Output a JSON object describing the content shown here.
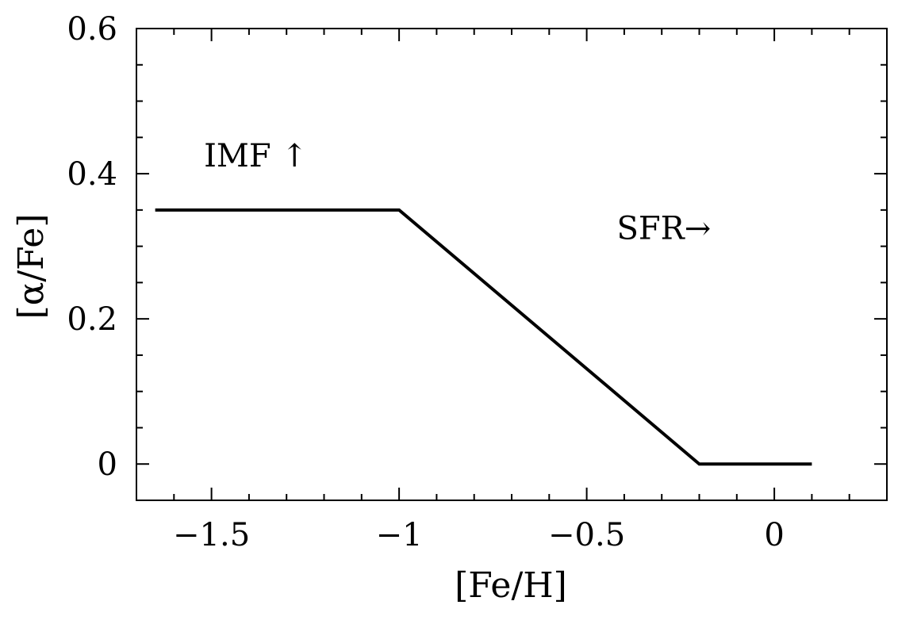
{
  "chart_data": {
    "type": "line",
    "xlabel": "[Fe/H]",
    "ylabel": "[α/Fe]",
    "xlim": [
      -1.7,
      0.3
    ],
    "ylim": [
      -0.05,
      0.6
    ],
    "x_ticks": [
      -1.5,
      -1,
      -0.5,
      0
    ],
    "x_tick_labels": [
      "−1.5",
      "−1",
      "−0.5",
      "0"
    ],
    "y_ticks": [
      0,
      0.2,
      0.4,
      0.6
    ],
    "y_tick_labels": [
      "0",
      "0.2",
      "0.4",
      "0.6"
    ],
    "grid": false,
    "series": [
      {
        "x": [
          -1.65,
          -1.0,
          -0.2,
          0.1
        ],
        "y": [
          0.35,
          0.35,
          0.0,
          0.0
        ],
        "color": "#000000"
      }
    ],
    "annotations": [
      {
        "text": "IMF ↑",
        "x": -1.52,
        "y": 0.41
      },
      {
        "text": "SFR→",
        "x": -0.42,
        "y": 0.31
      }
    ]
  }
}
